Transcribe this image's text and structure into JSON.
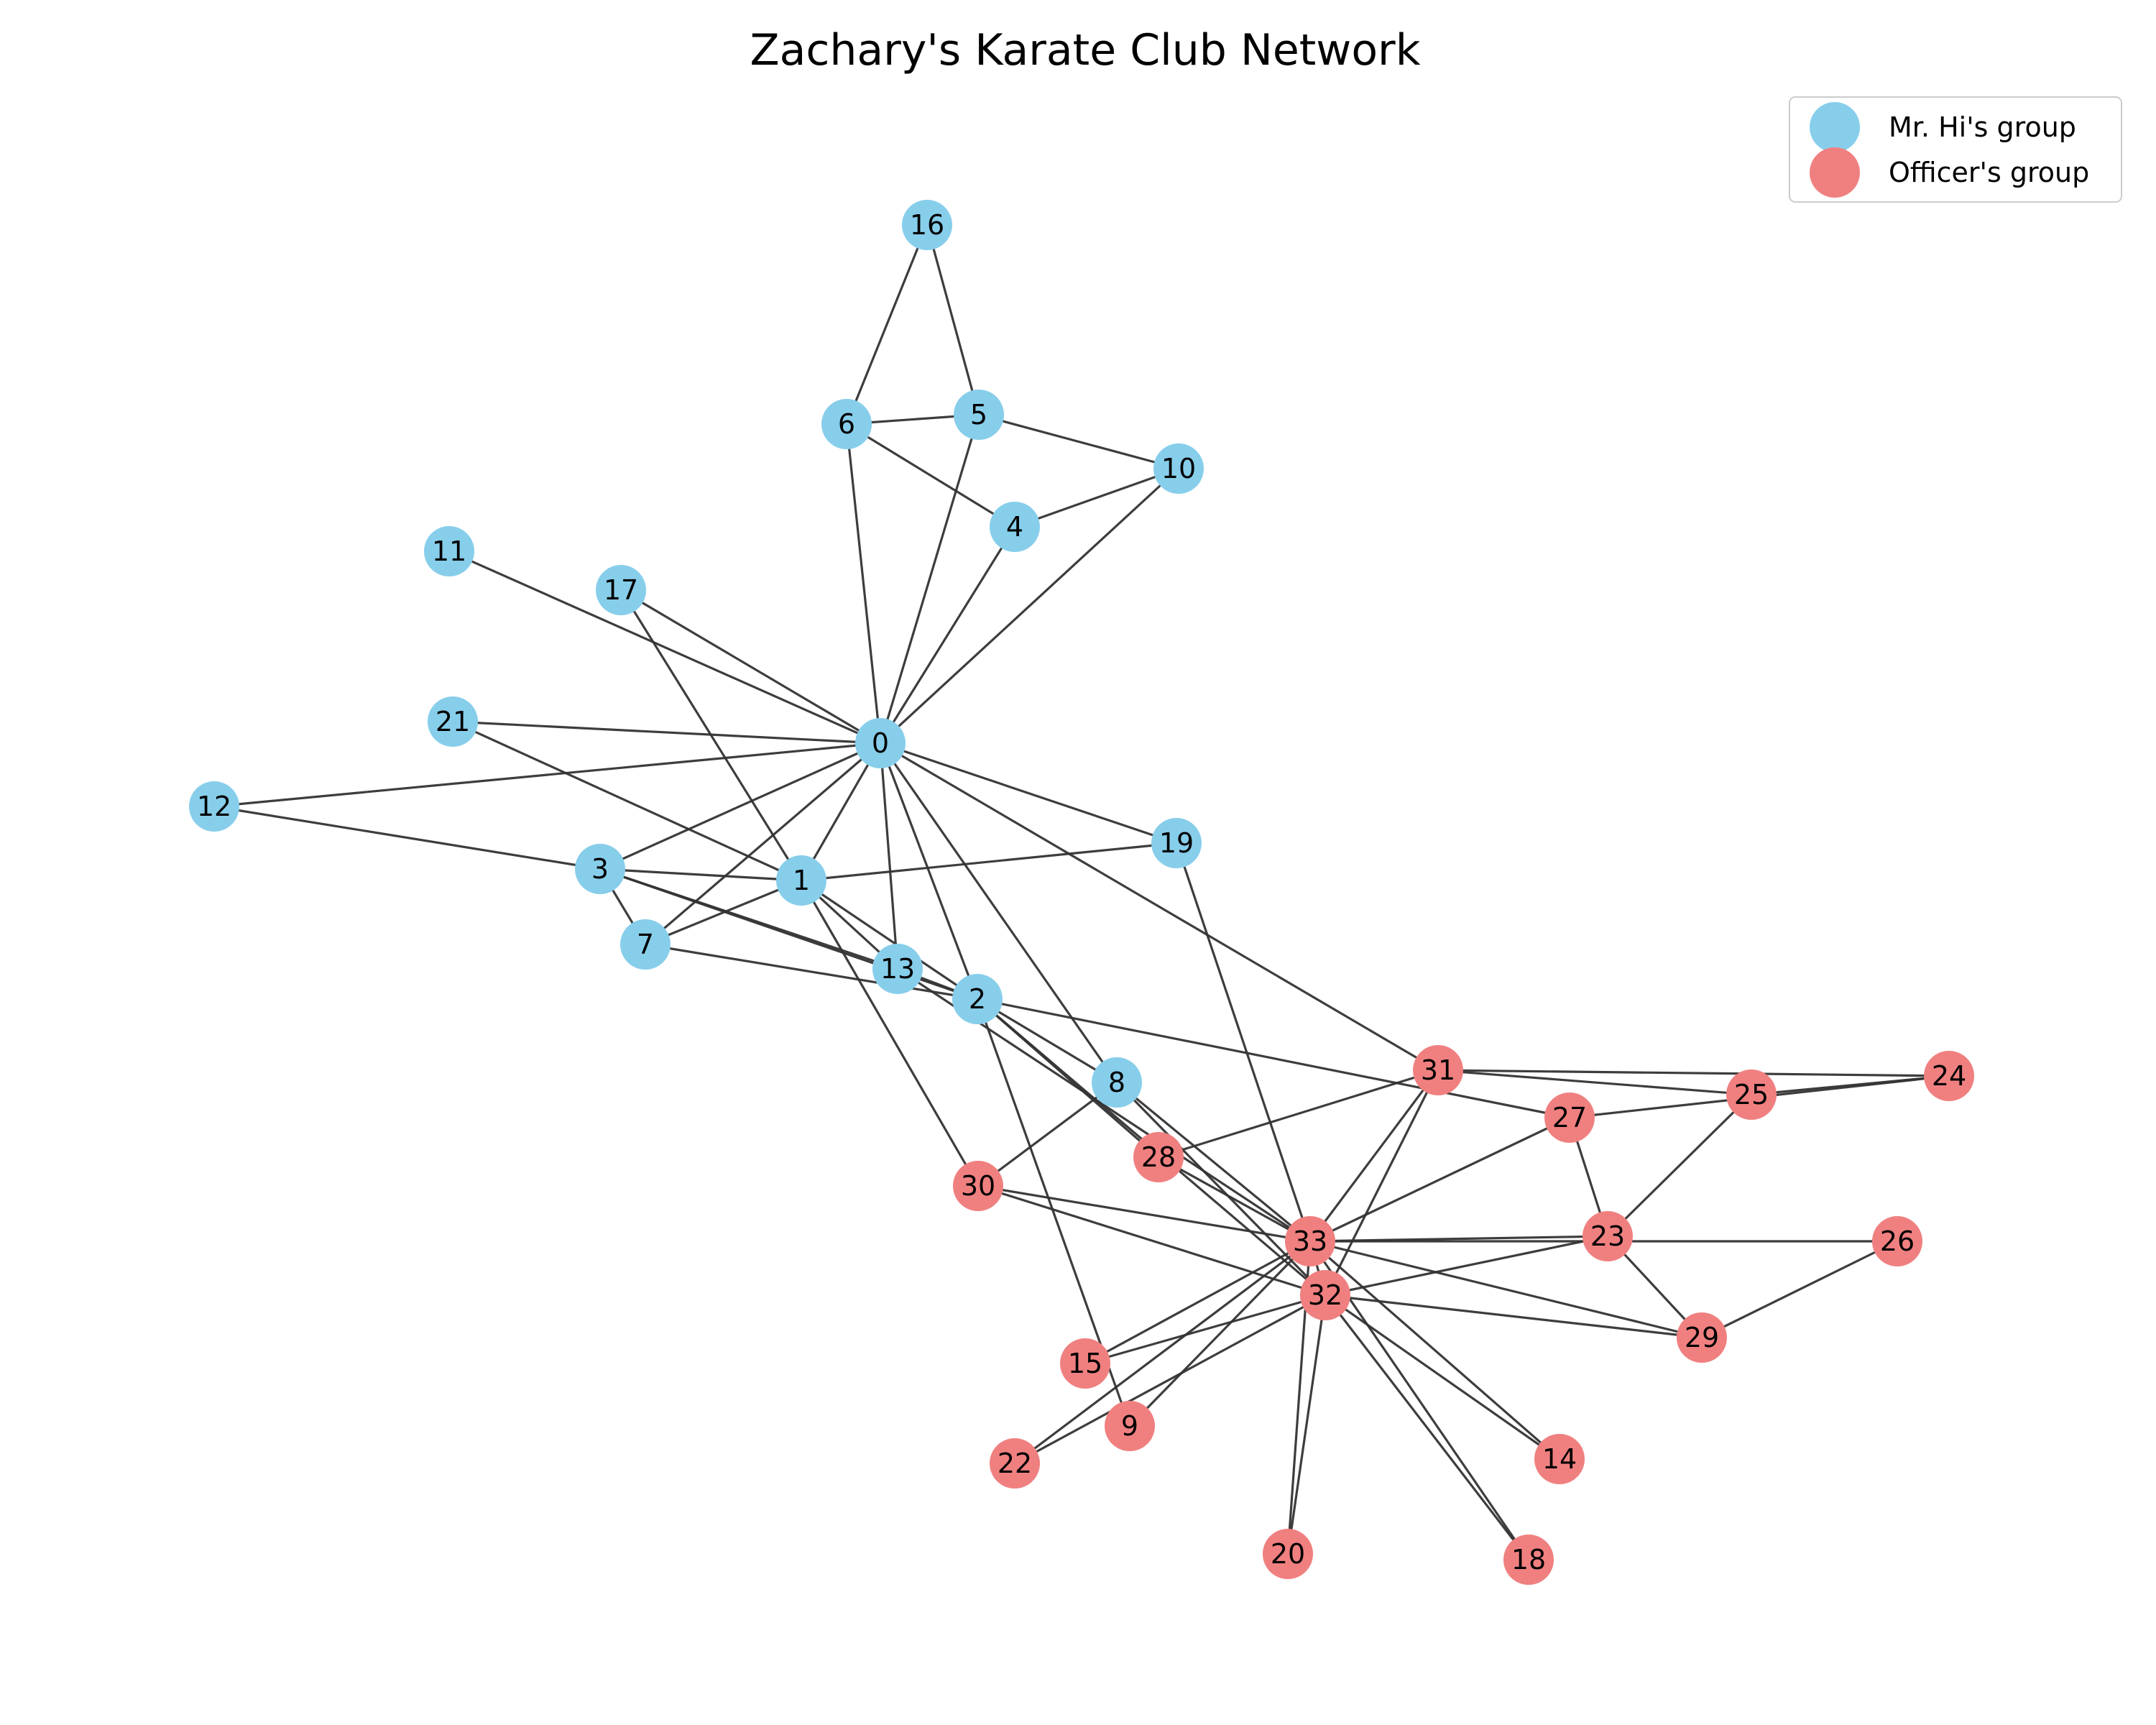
{
  "title": "Zachary's Karate Club Network",
  "legend": {
    "items": [
      {
        "label": "Mr. Hi's group",
        "group": "hi"
      },
      {
        "label": "Officer's group",
        "group": "officer"
      }
    ]
  },
  "colors": {
    "hi": "#87ceeb",
    "officer": "#f08080",
    "edge": "#333333"
  },
  "nodes": [
    {
      "id": "0",
      "group": "hi"
    },
    {
      "id": "1",
      "group": "hi"
    },
    {
      "id": "2",
      "group": "hi"
    },
    {
      "id": "3",
      "group": "hi"
    },
    {
      "id": "4",
      "group": "hi"
    },
    {
      "id": "5",
      "group": "hi"
    },
    {
      "id": "6",
      "group": "hi"
    },
    {
      "id": "7",
      "group": "hi"
    },
    {
      "id": "8",
      "group": "hi"
    },
    {
      "id": "9",
      "group": "officer"
    },
    {
      "id": "10",
      "group": "hi"
    },
    {
      "id": "11",
      "group": "hi"
    },
    {
      "id": "12",
      "group": "hi"
    },
    {
      "id": "13",
      "group": "hi"
    },
    {
      "id": "14",
      "group": "officer"
    },
    {
      "id": "15",
      "group": "officer"
    },
    {
      "id": "16",
      "group": "hi"
    },
    {
      "id": "17",
      "group": "hi"
    },
    {
      "id": "18",
      "group": "officer"
    },
    {
      "id": "19",
      "group": "hi"
    },
    {
      "id": "20",
      "group": "officer"
    },
    {
      "id": "21",
      "group": "hi"
    },
    {
      "id": "22",
      "group": "officer"
    },
    {
      "id": "23",
      "group": "officer"
    },
    {
      "id": "24",
      "group": "officer"
    },
    {
      "id": "25",
      "group": "officer"
    },
    {
      "id": "26",
      "group": "officer"
    },
    {
      "id": "27",
      "group": "officer"
    },
    {
      "id": "28",
      "group": "officer"
    },
    {
      "id": "29",
      "group": "officer"
    },
    {
      "id": "30",
      "group": "officer"
    },
    {
      "id": "31",
      "group": "officer"
    },
    {
      "id": "32",
      "group": "officer"
    },
    {
      "id": "33",
      "group": "officer"
    }
  ],
  "edges": [
    [
      "0",
      "1"
    ],
    [
      "0",
      "2"
    ],
    [
      "0",
      "3"
    ],
    [
      "0",
      "4"
    ],
    [
      "0",
      "5"
    ],
    [
      "0",
      "6"
    ],
    [
      "0",
      "7"
    ],
    [
      "0",
      "8"
    ],
    [
      "0",
      "10"
    ],
    [
      "0",
      "11"
    ],
    [
      "0",
      "12"
    ],
    [
      "0",
      "13"
    ],
    [
      "0",
      "17"
    ],
    [
      "0",
      "19"
    ],
    [
      "0",
      "21"
    ],
    [
      "0",
      "31"
    ],
    [
      "1",
      "2"
    ],
    [
      "1",
      "3"
    ],
    [
      "1",
      "7"
    ],
    [
      "1",
      "13"
    ],
    [
      "1",
      "17"
    ],
    [
      "1",
      "19"
    ],
    [
      "1",
      "21"
    ],
    [
      "1",
      "30"
    ],
    [
      "2",
      "3"
    ],
    [
      "2",
      "7"
    ],
    [
      "2",
      "8"
    ],
    [
      "2",
      "9"
    ],
    [
      "2",
      "13"
    ],
    [
      "2",
      "27"
    ],
    [
      "2",
      "28"
    ],
    [
      "2",
      "32"
    ],
    [
      "3",
      "7"
    ],
    [
      "3",
      "12"
    ],
    [
      "3",
      "13"
    ],
    [
      "4",
      "6"
    ],
    [
      "4",
      "10"
    ],
    [
      "5",
      "6"
    ],
    [
      "5",
      "10"
    ],
    [
      "5",
      "16"
    ],
    [
      "6",
      "16"
    ],
    [
      "8",
      "30"
    ],
    [
      "8",
      "32"
    ],
    [
      "8",
      "33"
    ],
    [
      "9",
      "33"
    ],
    [
      "13",
      "33"
    ],
    [
      "14",
      "32"
    ],
    [
      "14",
      "33"
    ],
    [
      "15",
      "32"
    ],
    [
      "15",
      "33"
    ],
    [
      "18",
      "32"
    ],
    [
      "18",
      "33"
    ],
    [
      "19",
      "33"
    ],
    [
      "20",
      "32"
    ],
    [
      "20",
      "33"
    ],
    [
      "22",
      "32"
    ],
    [
      "22",
      "33"
    ],
    [
      "23",
      "25"
    ],
    [
      "23",
      "27"
    ],
    [
      "23",
      "29"
    ],
    [
      "23",
      "32"
    ],
    [
      "23",
      "33"
    ],
    [
      "24",
      "25"
    ],
    [
      "24",
      "27"
    ],
    [
      "24",
      "31"
    ],
    [
      "25",
      "31"
    ],
    [
      "26",
      "29"
    ],
    [
      "26",
      "33"
    ],
    [
      "27",
      "33"
    ],
    [
      "28",
      "31"
    ],
    [
      "28",
      "33"
    ],
    [
      "29",
      "32"
    ],
    [
      "29",
      "33"
    ],
    [
      "30",
      "32"
    ],
    [
      "30",
      "33"
    ],
    [
      "31",
      "32"
    ],
    [
      "31",
      "33"
    ],
    [
      "32",
      "33"
    ]
  ]
}
